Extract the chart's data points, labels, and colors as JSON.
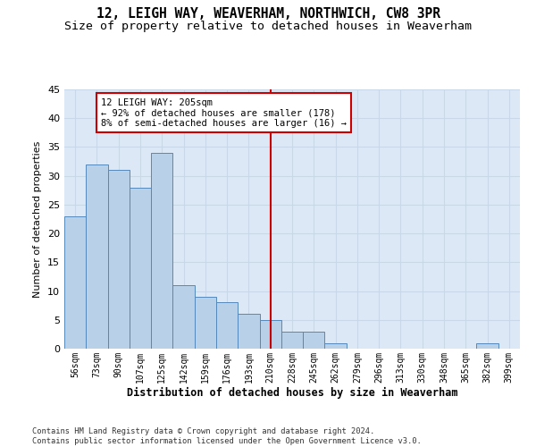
{
  "title1": "12, LEIGH WAY, WEAVERHAM, NORTHWICH, CW8 3PR",
  "title2": "Size of property relative to detached houses in Weaverham",
  "xlabel": "Distribution of detached houses by size in Weaverham",
  "ylabel": "Number of detached properties",
  "footnote": "Contains HM Land Registry data © Crown copyright and database right 2024.\nContains public sector information licensed under the Open Government Licence v3.0.",
  "categories": [
    "56sqm",
    "73sqm",
    "90sqm",
    "107sqm",
    "125sqm",
    "142sqm",
    "159sqm",
    "176sqm",
    "193sqm",
    "210sqm",
    "228sqm",
    "245sqm",
    "262sqm",
    "279sqm",
    "296sqm",
    "313sqm",
    "330sqm",
    "348sqm",
    "365sqm",
    "382sqm",
    "399sqm"
  ],
  "values": [
    23,
    32,
    31,
    28,
    34,
    11,
    9,
    8,
    6,
    5,
    3,
    3,
    1,
    0,
    0,
    0,
    0,
    0,
    0,
    1,
    0
  ],
  "bar_color": "#b8d0e8",
  "bar_edge_color": "#5588bb",
  "vline_color": "#cc0000",
  "annotation_text": "12 LEIGH WAY: 205sqm\n← 92% of detached houses are smaller (178)\n8% of semi-detached houses are larger (16) →",
  "annotation_box_color": "#cc0000",
  "ylim": [
    0,
    45
  ],
  "yticks": [
    0,
    5,
    10,
    15,
    20,
    25,
    30,
    35,
    40,
    45
  ],
  "grid_color": "#c8d8e8",
  "bg_color": "#dce8f5",
  "title1_fontsize": 10.5,
  "title2_fontsize": 9.5
}
